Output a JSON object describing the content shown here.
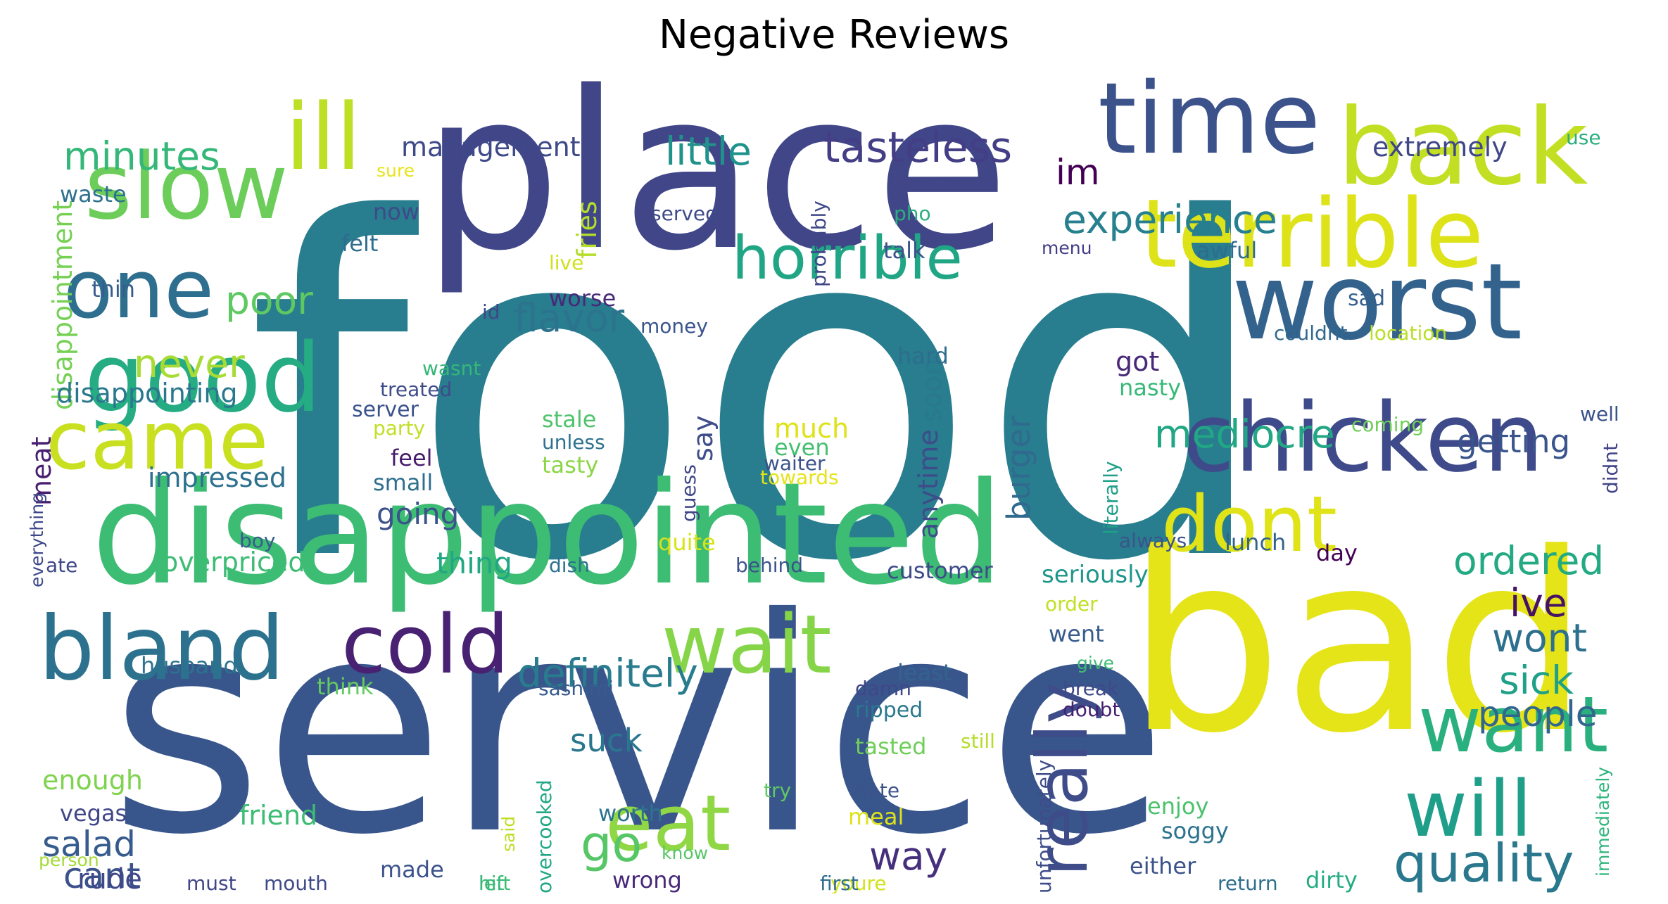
{
  "title": "Negative Reviews",
  "chart_data": {
    "type": "wordcloud",
    "title": "Negative Reviews",
    "words": [
      {
        "text": "food",
        "color": "#287d8e"
      },
      {
        "text": "service",
        "color": "#39568c"
      },
      {
        "text": "place",
        "color": "#404688"
      },
      {
        "text": "disappointed",
        "color": "#3dbc74"
      },
      {
        "text": "bad",
        "color": "#e5e419"
      },
      {
        "text": "time",
        "color": "#3b528b"
      },
      {
        "text": "back",
        "color": "#c2df23"
      },
      {
        "text": "terrible",
        "color": "#dde318"
      },
      {
        "text": "worst",
        "color": "#33638d"
      },
      {
        "text": "chicken",
        "color": "#3e4a89"
      },
      {
        "text": "slow",
        "color": "#6ccd5a"
      },
      {
        "text": "ill",
        "color": "#bddf26"
      },
      {
        "text": "good",
        "color": "#25ac82"
      },
      {
        "text": "one",
        "color": "#2e6e8e"
      },
      {
        "text": "came",
        "color": "#c8e020"
      },
      {
        "text": "bland",
        "color": "#2c728e"
      },
      {
        "text": "cold",
        "color": "#482173"
      },
      {
        "text": "wait",
        "color": "#86d549"
      },
      {
        "text": "eat",
        "color": "#8fd744"
      },
      {
        "text": "dont",
        "color": "#dfe318"
      },
      {
        "text": "will",
        "color": "#1f9e89"
      },
      {
        "text": "want",
        "color": "#2ab07f"
      },
      {
        "text": "quality",
        "color": "#2a788e"
      },
      {
        "text": "really",
        "color": "#3e4c8a"
      },
      {
        "text": "horrible",
        "color": "#21a685"
      },
      {
        "text": "tasteless",
        "color": "#433e85"
      },
      {
        "text": "minutes",
        "color": "#35b779"
      },
      {
        "text": "little",
        "color": "#20928c"
      },
      {
        "text": "management",
        "color": "#3e4989"
      },
      {
        "text": "experience",
        "color": "#27808e"
      },
      {
        "text": "im",
        "color": "#440154"
      },
      {
        "text": "extremely",
        "color": "#3f4788"
      },
      {
        "text": "use",
        "color": "#29af7f"
      },
      {
        "text": "definitely",
        "color": "#287c8e"
      },
      {
        "text": "flavor",
        "color": "#2c738e"
      },
      {
        "text": "poor",
        "color": "#5ec962"
      },
      {
        "text": "never",
        "color": "#a8db34"
      },
      {
        "text": "mediocre",
        "color": "#22a785"
      },
      {
        "text": "getting",
        "color": "#3a548c"
      },
      {
        "text": "ordered",
        "color": "#24aa83"
      },
      {
        "text": "ive",
        "color": "#471164"
      },
      {
        "text": "wont",
        "color": "#2d708e"
      },
      {
        "text": "sick",
        "color": "#1fa088"
      },
      {
        "text": "people",
        "color": "#31668e"
      },
      {
        "text": "go",
        "color": "#56c667"
      },
      {
        "text": "way",
        "color": "#46307e"
      },
      {
        "text": "suck",
        "color": "#2a768e"
      },
      {
        "text": "salad",
        "color": "#365c8d"
      },
      {
        "text": "cant",
        "color": "#3b528b"
      },
      {
        "text": "rude",
        "color": "#3f4889"
      },
      {
        "text": "disappointment",
        "color": "#75d054"
      },
      {
        "text": "disappointing",
        "color": "#2a788e"
      },
      {
        "text": "meat",
        "color": "#481f70"
      },
      {
        "text": "impressed",
        "color": "#2d718e"
      },
      {
        "text": "say",
        "color": "#3d4e8a"
      },
      {
        "text": "served",
        "color": "#3e4a89"
      },
      {
        "text": "fries",
        "color": "#b5de2b"
      },
      {
        "text": "probably",
        "color": "#3f4788"
      },
      {
        "text": "pho",
        "color": "#29af7f"
      },
      {
        "text": "talk",
        "color": "#3b528b"
      },
      {
        "text": "menu",
        "color": "#433e85"
      },
      {
        "text": "awful",
        "color": "#2f6c8e"
      },
      {
        "text": "sad",
        "color": "#355f8d"
      },
      {
        "text": "couldnt",
        "color": "#31688e"
      },
      {
        "text": "location",
        "color": "#bade28"
      },
      {
        "text": "well",
        "color": "#3b528b"
      },
      {
        "text": "coming",
        "color": "#70cf57"
      },
      {
        "text": "didnt",
        "color": "#414487"
      },
      {
        "text": "waste",
        "color": "#2c718e"
      },
      {
        "text": "sure",
        "color": "#e7e419"
      },
      {
        "text": "now",
        "color": "#3e4a89"
      },
      {
        "text": "felt",
        "color": "#2e6d8e"
      },
      {
        "text": "live",
        "color": "#d0e11c"
      },
      {
        "text": "thin",
        "color": "#365d8d"
      },
      {
        "text": "worse",
        "color": "#482878"
      },
      {
        "text": "id",
        "color": "#3f4788"
      },
      {
        "text": "money",
        "color": "#3a548c"
      },
      {
        "text": "wasnt",
        "color": "#35b779"
      },
      {
        "text": "treated",
        "color": "#3e4c8a"
      },
      {
        "text": "server",
        "color": "#3b528b"
      },
      {
        "text": "party",
        "color": "#c0df25"
      },
      {
        "text": "stale",
        "color": "#4ec36b"
      },
      {
        "text": "unless",
        "color": "#2c728e"
      },
      {
        "text": "tasty",
        "color": "#8bd646"
      },
      {
        "text": "much",
        "color": "#dde318"
      },
      {
        "text": "even",
        "color": "#44bf70"
      },
      {
        "text": "waiter",
        "color": "#3a538b"
      },
      {
        "text": "towards",
        "color": "#e5e419"
      },
      {
        "text": "anytime",
        "color": "#3e4c8a"
      },
      {
        "text": "soon",
        "color": "#2a788e"
      },
      {
        "text": "hard",
        "color": "#2e6d8e"
      },
      {
        "text": "burger",
        "color": "#306a8e"
      },
      {
        "text": "got",
        "color": "#482878"
      },
      {
        "text": "nasty",
        "color": "#37b878"
      },
      {
        "text": "literally",
        "color": "#1fa088"
      },
      {
        "text": "always",
        "color": "#3a548c"
      },
      {
        "text": "lunch",
        "color": "#33638d"
      },
      {
        "text": "day",
        "color": "#440154"
      },
      {
        "text": "feel",
        "color": "#481b6d"
      },
      {
        "text": "small",
        "color": "#2e6f8e"
      },
      {
        "text": "going",
        "color": "#3b528b"
      },
      {
        "text": "guess",
        "color": "#3f4788"
      },
      {
        "text": "boy",
        "color": "#365d8d"
      },
      {
        "text": "everything",
        "color": "#3e4989"
      },
      {
        "text": "ate",
        "color": "#3f4788"
      },
      {
        "text": "overpriced",
        "color": "#3dbc74"
      },
      {
        "text": "thing",
        "color": "#22a785"
      },
      {
        "text": "quite",
        "color": "#d8e219"
      },
      {
        "text": "dish",
        "color": "#2c728e"
      },
      {
        "text": "behind",
        "color": "#3b528b"
      },
      {
        "text": "customer",
        "color": "#3e4a89"
      },
      {
        "text": "seriously",
        "color": "#1f968b"
      },
      {
        "text": "order",
        "color": "#c2df23"
      },
      {
        "text": "went",
        "color": "#365c8d"
      },
      {
        "text": "give",
        "color": "#3dbc74"
      },
      {
        "text": "break",
        "color": "#3e4989"
      },
      {
        "text": "doubt",
        "color": "#482071"
      },
      {
        "text": "husband",
        "color": "#2c718e"
      },
      {
        "text": "think",
        "color": "#63cb5f"
      },
      {
        "text": "sashimi",
        "color": "#375b8d"
      },
      {
        "text": "damn",
        "color": "#3f4788"
      },
      {
        "text": "ripped",
        "color": "#2a788e"
      },
      {
        "text": "least",
        "color": "#33638d"
      },
      {
        "text": "tasted",
        "color": "#6ece58"
      },
      {
        "text": "still",
        "color": "#b5de2b"
      },
      {
        "text": "unfortunately",
        "color": "#3e4c8a"
      },
      {
        "text": "immediately",
        "color": "#2fb47c"
      },
      {
        "text": "enough",
        "color": "#7fd34e"
      },
      {
        "text": "friend",
        "color": "#3dbc74"
      },
      {
        "text": "vegas",
        "color": "#3f4788"
      },
      {
        "text": "person",
        "color": "#a2da37"
      },
      {
        "text": "must",
        "color": "#404688"
      },
      {
        "text": "mouth",
        "color": "#3e4a89"
      },
      {
        "text": "made",
        "color": "#3b528b"
      },
      {
        "text": "left",
        "color": "#3dbc74"
      },
      {
        "text": "hit",
        "color": "#37b878"
      },
      {
        "text": "said",
        "color": "#bddf26"
      },
      {
        "text": "overcooked",
        "color": "#22a785"
      },
      {
        "text": "know",
        "color": "#56c667"
      },
      {
        "text": "wrong",
        "color": "#482878"
      },
      {
        "text": "worth",
        "color": "#2c738e"
      },
      {
        "text": "meal",
        "color": "#dde318"
      },
      {
        "text": "try",
        "color": "#5ec962"
      },
      {
        "text": "hate",
        "color": "#3b528b"
      },
      {
        "text": "youre",
        "color": "#d2e21b"
      },
      {
        "text": "first",
        "color": "#2e6d8e"
      },
      {
        "text": "enjoy",
        "color": "#4ac16d"
      },
      {
        "text": "soggy",
        "color": "#2c738e"
      },
      {
        "text": "either",
        "color": "#3b528b"
      },
      {
        "text": "dirty",
        "color": "#25ac82"
      },
      {
        "text": "return",
        "color": "#2e6f8e"
      }
    ]
  }
}
